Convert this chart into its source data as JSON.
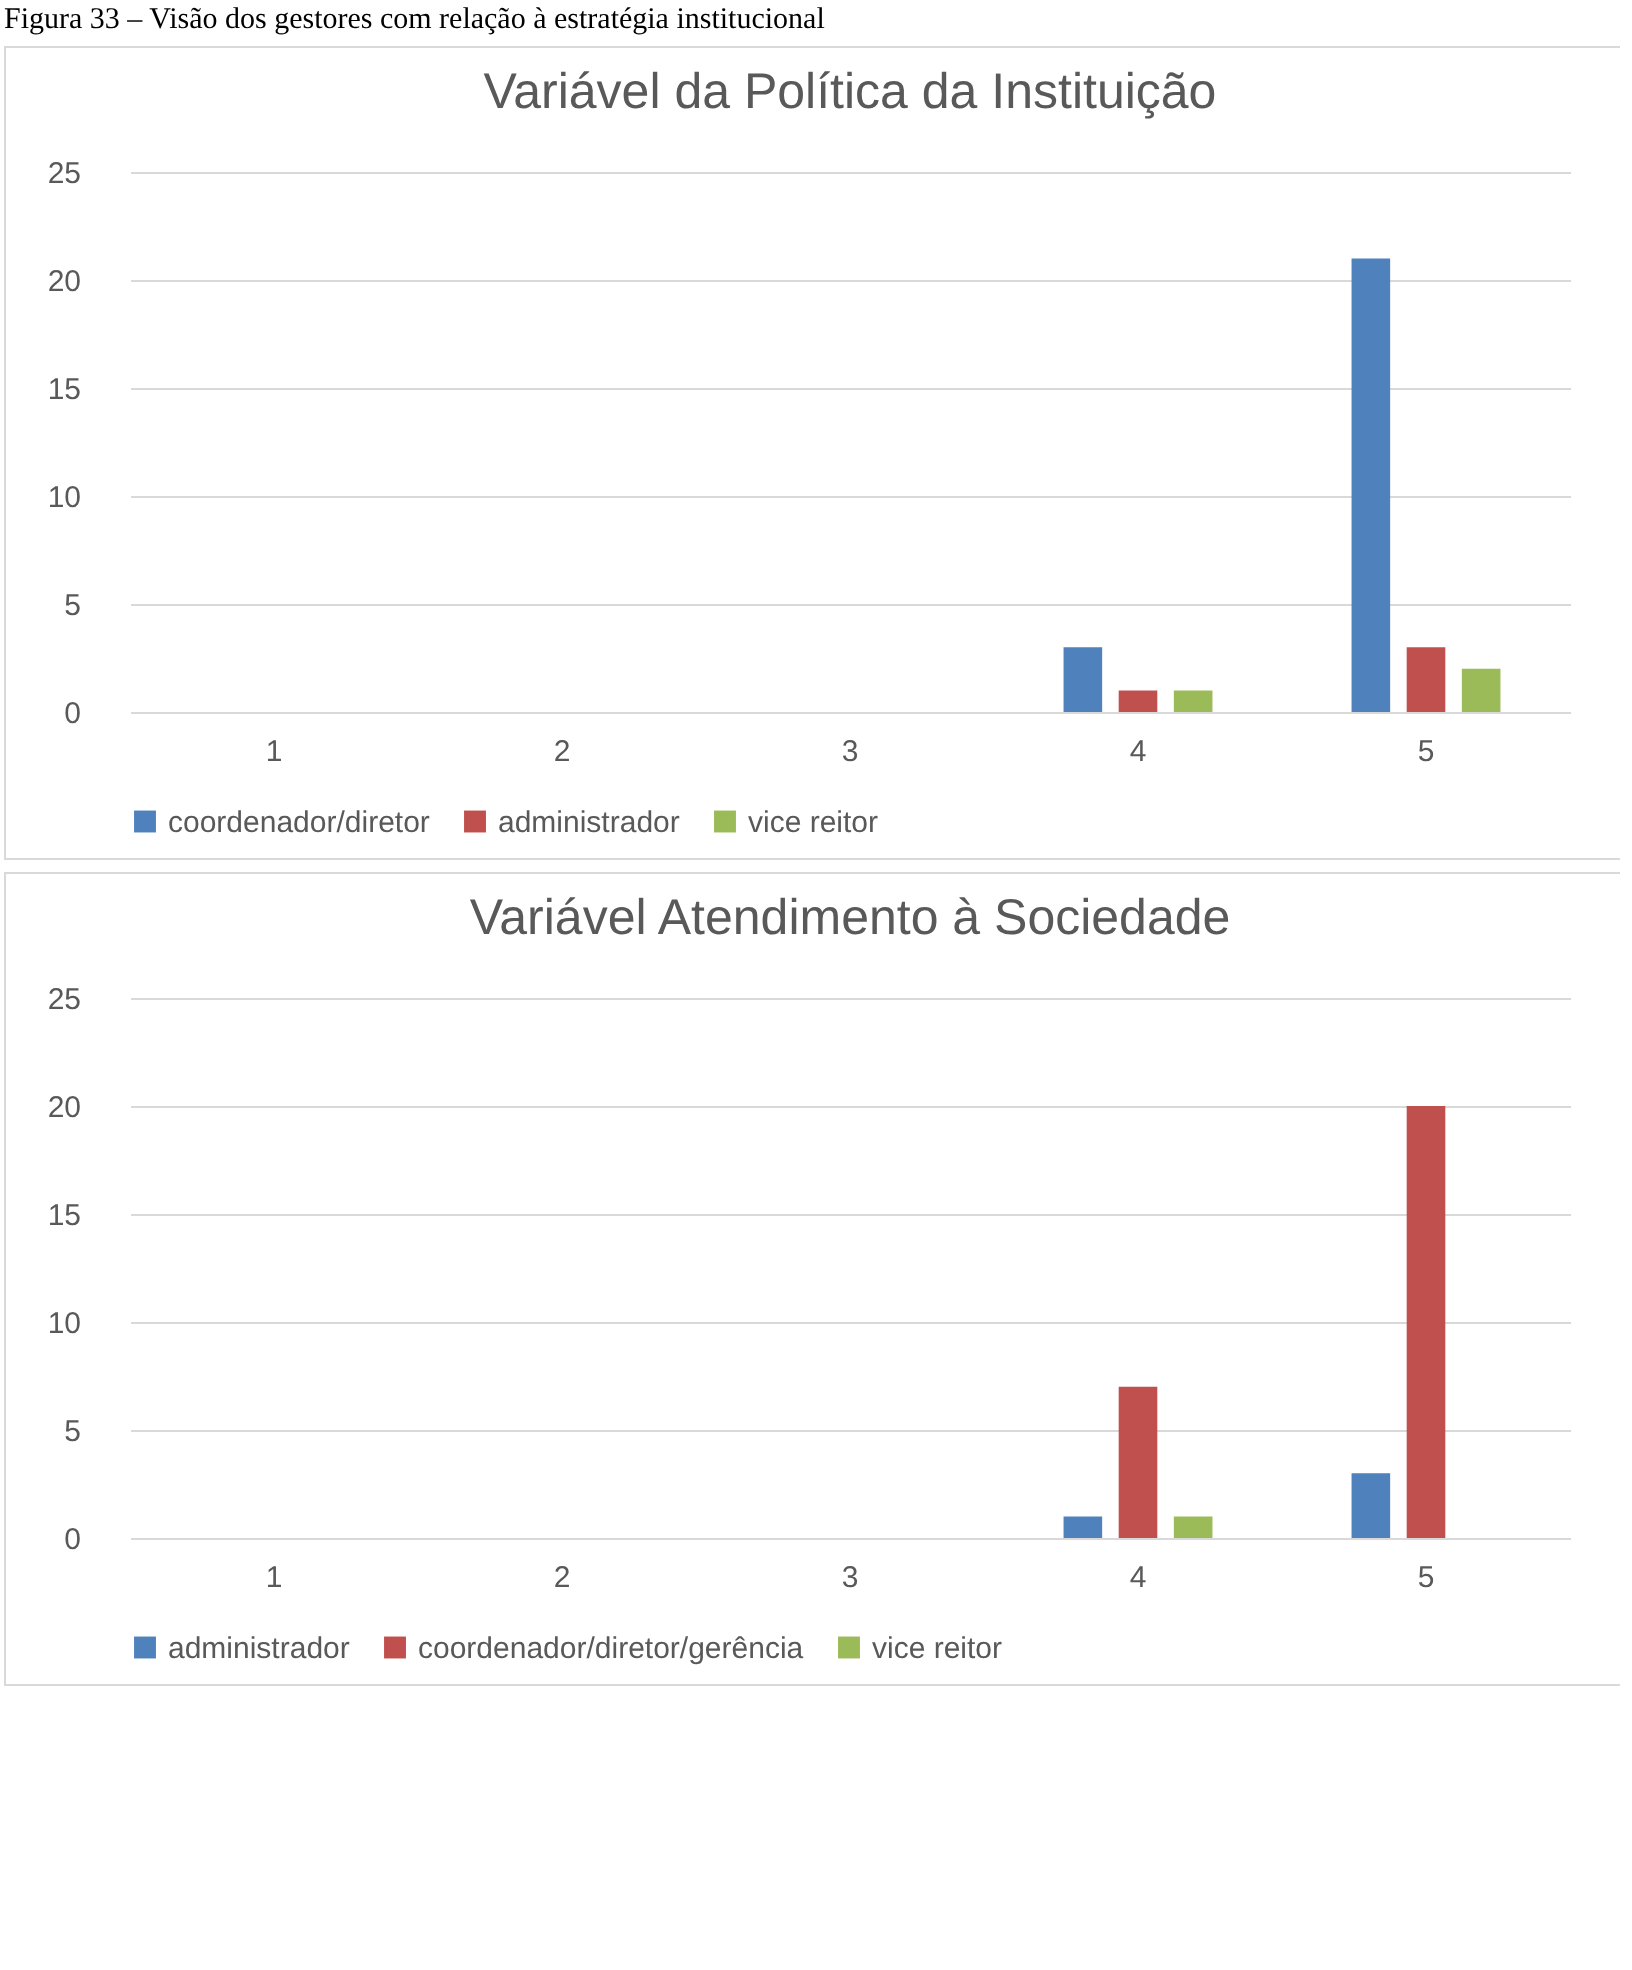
{
  "chart_data": [
    {
      "type": "bar",
      "title": "Variável da Política da Instituição",
      "annotations": [
        "Figura 33 – Visão dos gestores com relação à estratégia institucional"
      ],
      "categories": [
        "1",
        "2",
        "3",
        "4",
        "5"
      ],
      "series": [
        {
          "name": "coordenador/diretor",
          "color": "#4f81bd",
          "values": [
            0,
            0,
            0,
            3,
            21
          ]
        },
        {
          "name": "administrador",
          "color": "#c0504d",
          "values": [
            0,
            0,
            0,
            1,
            3
          ]
        },
        {
          "name": "vice reitor",
          "color": "#9bbb59",
          "values": [
            0,
            0,
            0,
            1,
            2
          ]
        }
      ],
      "ylim": [
        0,
        25
      ],
      "yticks": [
        0,
        5,
        10,
        15,
        20,
        25
      ],
      "grid": "y",
      "legend": "bottom"
    },
    {
      "type": "bar",
      "title": "Variável Atendimento à Sociedade",
      "categories": [
        "1",
        "2",
        "3",
        "4",
        "5"
      ],
      "series": [
        {
          "name": "administrador",
          "color": "#4f81bd",
          "values": [
            0,
            0,
            0,
            1,
            3
          ]
        },
        {
          "name": "coordenador/diretor/gerência",
          "color": "#c0504d",
          "values": [
            0,
            0,
            0,
            7,
            20
          ]
        },
        {
          "name": "vice reitor",
          "color": "#9bbb59",
          "values": [
            0,
            0,
            0,
            1,
            0
          ]
        }
      ],
      "ylim": [
        0,
        25
      ],
      "yticks": [
        0,
        5,
        10,
        15,
        20,
        25
      ],
      "grid": "y",
      "legend": "bottom"
    }
  ]
}
